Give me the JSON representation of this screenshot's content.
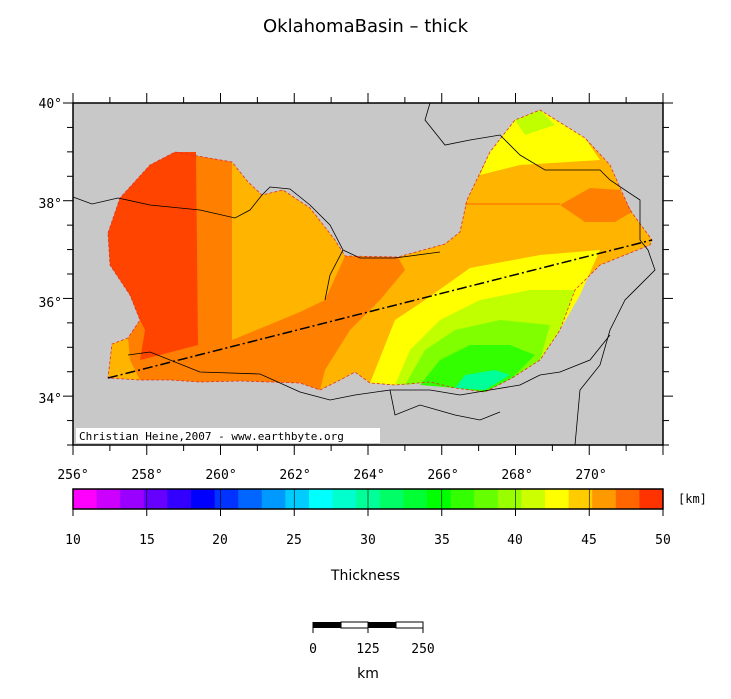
{
  "title": "OklahomaBasin – thick",
  "credit": "Christian Heine,2007 - www.earthbyte.org",
  "map": {
    "lon_ticks": [
      "256°",
      "258°",
      "260°",
      "262°",
      "264°",
      "266°",
      "268°",
      "270°"
    ],
    "lat_ticks": [
      "40°",
      "38°",
      "36°",
      "34°"
    ],
    "colors": {
      "background": "#c8c8c8",
      "red": "#ff4400",
      "orange_dark": "#ff8000",
      "orange": "#ffb400",
      "yellow": "#ffff00",
      "yellowgreen": "#c0ff00",
      "green_light": "#80ff00",
      "green": "#33ff00",
      "green_bright": "#00ff55",
      "cyan_green": "#00ff99"
    }
  },
  "colorbar": {
    "unit": "[km]",
    "labels": [
      "10",
      "15",
      "20",
      "25",
      "30",
      "35",
      "40",
      "45",
      "50"
    ],
    "title": "Thickness",
    "colors": [
      "#ff00ff",
      "#cc00ff",
      "#9900ff",
      "#6600ff",
      "#3300ff",
      "#0000ff",
      "#0033ff",
      "#0066ff",
      "#0099ff",
      "#00ccff",
      "#00ffff",
      "#00ffcc",
      "#00ff99",
      "#00ff66",
      "#00ff33",
      "#00ff00",
      "#33ff00",
      "#66ff00",
      "#99ff00",
      "#ccff00",
      "#ffff00",
      "#ffcc00",
      "#ff9900",
      "#ff6600",
      "#ff3300"
    ]
  },
  "scalebar": {
    "labels": [
      "0",
      "125",
      "250"
    ],
    "unit": "km"
  }
}
